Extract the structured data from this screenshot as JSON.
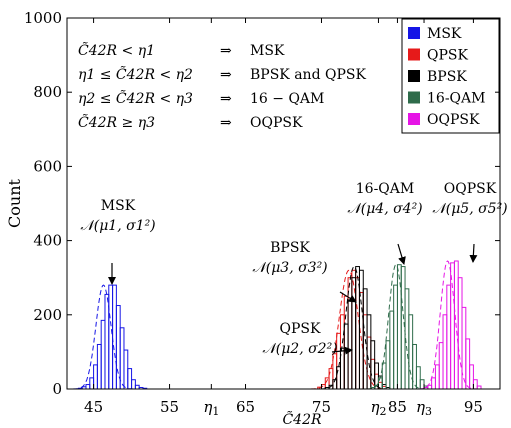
{
  "chart_data": {
    "type": "bar",
    "xlabel": "C̃42R",
    "ylabel": "Count",
    "xlim": [
      41.5,
      98.5
    ],
    "ylim": [
      0,
      1000
    ],
    "xticks": [
      {
        "v": 45,
        "label": "45"
      },
      {
        "v": 55,
        "label": "55"
      },
      {
        "v": 60.5,
        "label": "η1"
      },
      {
        "v": 65,
        "label": "65"
      },
      {
        "v": 75,
        "label": "75"
      },
      {
        "v": 82.5,
        "label": "η2"
      },
      {
        "v": 85,
        "label": "85"
      },
      {
        "v": 88.5,
        "label": "η3"
      },
      {
        "v": 95,
        "label": "95"
      }
    ],
    "yticks": [
      {
        "v": 0,
        "label": "0"
      },
      {
        "v": 200,
        "label": "200"
      },
      {
        "v": 400,
        "label": "400"
      },
      {
        "v": 600,
        "label": "600"
      },
      {
        "v": 800,
        "label": "800"
      },
      {
        "v": 1000,
        "label": "1000"
      }
    ],
    "bin_width": 0.5,
    "series": [
      {
        "name": "MSK",
        "color": "#1515e6",
        "mu": 46.3,
        "sigma": 1.0,
        "bin_start": 43.0,
        "counts": [
          2,
          6,
          12,
          30,
          65,
          120,
          185,
          255,
          280,
          280,
          225,
          165,
          105,
          55,
          25,
          10,
          4,
          2
        ]
      },
      {
        "name": "QPSK",
        "color": "#e61a1a",
        "mu": 78.6,
        "sigma": 1.25,
        "bin_start": 74.5,
        "counts": [
          5,
          12,
          30,
          55,
          95,
          150,
          200,
          250,
          300,
          320,
          300,
          260,
          200,
          140,
          80,
          40,
          18,
          7
        ]
      },
      {
        "name": "BPSK",
        "color": "#000000",
        "mu": 79.3,
        "sigma": 1.1,
        "bin_start": 75.5,
        "counts": [
          4,
          10,
          25,
          60,
          110,
          175,
          240,
          300,
          330,
          320,
          270,
          200,
          130,
          70,
          35,
          12,
          4
        ]
      },
      {
        "name": "16-QAM",
        "color": "#2e6b4a",
        "mu": 84.8,
        "sigma": 0.95,
        "bin_start": 81.5,
        "counts": [
          4,
          10,
          30,
          70,
          130,
          210,
          280,
          335,
          330,
          270,
          200,
          120,
          60,
          25,
          8
        ]
      },
      {
        "name": "OQPSK",
        "color": "#e614e6",
        "mu": 91.6,
        "sigma": 0.95,
        "bin_start": 88.5,
        "counts": [
          4,
          10,
          30,
          65,
          125,
          200,
          280,
          340,
          345,
          300,
          220,
          135,
          65,
          25,
          8
        ]
      }
    ],
    "legend": {
      "placement": "top-right",
      "items": [
        {
          "label": "MSK",
          "color": "#1515e6"
        },
        {
          "label": "QPSK",
          "color": "#e61a1a"
        },
        {
          "label": "BPSK",
          "color": "#000000"
        },
        {
          "label": "16-QAM",
          "color": "#2e6b4a"
        },
        {
          "label": "OQPSK",
          "color": "#e614e6"
        }
      ]
    },
    "rules": [
      {
        "cond": "C̃42R < η1",
        "result": "MSK"
      },
      {
        "cond": "η1 ≤ C̃42R < η2",
        "result": "BPSK and QPSK"
      },
      {
        "cond": "η2 ≤ C̃42R < η3",
        "result": "16 − QAM"
      },
      {
        "cond": "C̃42R ≥ η3",
        "result": "OQPSK"
      }
    ],
    "rule_arrow": "⇒",
    "annotations": [
      {
        "name": "MSK",
        "dist": "𝒩(μ1, σ1²)",
        "tip": {
          "x": 47.0,
          "y": 282
        }
      },
      {
        "name": "QPSK",
        "dist": "𝒩(μ2, σ2²)",
        "tip": {
          "x": 77.3,
          "y": 110
        }
      },
      {
        "name": "BPSK",
        "dist": "𝒩(μ3, σ3²)",
        "tip": {
          "x": 78.3,
          "y": 228
        }
      },
      {
        "name": "16-QAM",
        "dist": "𝒩(μ4, σ4²)",
        "tip": {
          "x": 84.7,
          "y": 340
        }
      },
      {
        "name": "OQPSK",
        "dist": "𝒩(μ5, σ5²)",
        "tip": {
          "x": 91.8,
          "y": 350
        }
      }
    ]
  }
}
